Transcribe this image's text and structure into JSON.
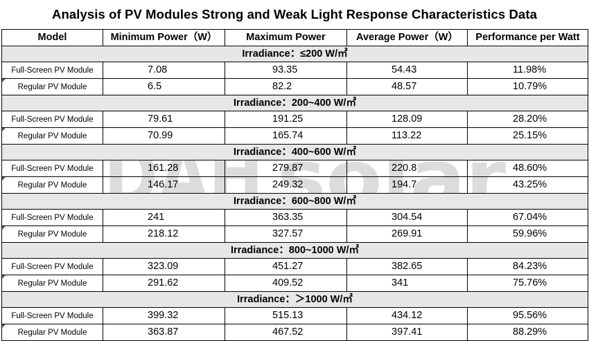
{
  "title": "Analysis of PV Modules Strong and Weak Light Response Characteristics Data",
  "headers": [
    "Model",
    "Minimum Power（W）",
    "Maximum Power",
    "Average Power（W）",
    "Performance per Watt"
  ],
  "watermark": {
    "mark": "DAH",
    "text": "solar"
  },
  "sections": [
    {
      "label": "Irradiance：≤200 W/㎡",
      "rows": [
        {
          "model": "Full-Screen PV Module",
          "min": "7.08",
          "max": "93.35",
          "avg": "54.43",
          "perf": "11.98%"
        },
        {
          "model": "Regular PV Module",
          "min": "6.5",
          "max": "82.2",
          "avg": "48.57",
          "perf": "10.79%"
        }
      ]
    },
    {
      "label": "Irradiance：200~400 W/㎡",
      "rows": [
        {
          "model": "Full-Screen PV Module",
          "min": "79.61",
          "max": "191.25",
          "avg": "128.09",
          "perf": "28.20%"
        },
        {
          "model": "Regular PV Module",
          "min": "70.99",
          "max": "165.74",
          "avg": "113.22",
          "perf": "25.15%"
        }
      ]
    },
    {
      "label": "Irradiance：400~600 W/㎡",
      "rows": [
        {
          "model": "Full-Screen PV Module",
          "min": "161.28",
          "max": "279.87",
          "avg": "220.8",
          "perf": "48.60%"
        },
        {
          "model": "Regular PV Module",
          "min": "146.17",
          "max": "249.32",
          "avg": "194.7",
          "perf": "43.25%"
        }
      ]
    },
    {
      "label": "Irradiance：600~800 W/㎡",
      "rows": [
        {
          "model": "Full-Screen PV Module",
          "min": "241",
          "max": "363.35",
          "avg": "304.54",
          "perf": "67.04%"
        },
        {
          "model": "Regular PV Module",
          "min": "218.12",
          "max": "327.57",
          "avg": "269.91",
          "perf": "59.96%"
        }
      ]
    },
    {
      "label": "Irradiance：800~1000 W/㎡",
      "rows": [
        {
          "model": "Full-Screen PV Module",
          "min": "323.09",
          "max": "451.27",
          "avg": "382.65",
          "perf": "84.23%"
        },
        {
          "model": "Regular PV Module",
          "min": "291.62",
          "max": "409.52",
          "avg": "341",
          "perf": "75.76%"
        }
      ]
    },
    {
      "label": "Irradiance：＞1000 W/㎡",
      "rows": [
        {
          "model": "Full-Screen PV Module",
          "min": "399.32",
          "max": "515.13",
          "avg": "434.12",
          "perf": "95.56%"
        },
        {
          "model": "Regular PV Module",
          "min": "363.87",
          "max": "467.52",
          "avg": "397.41",
          "perf": "88.29%"
        }
      ]
    }
  ]
}
